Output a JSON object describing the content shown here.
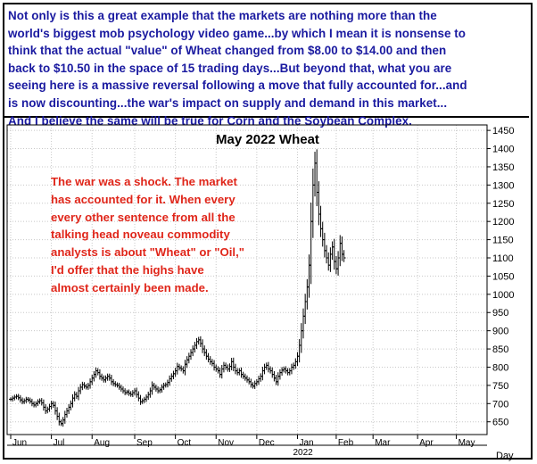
{
  "commentary": {
    "lines": [
      "Not only is this a great example that the markets are nothing more than the",
      "world's biggest mob psychology video game...by which I mean it is nonsense to",
      "think that the actual \"value\" of Wheat changed from $8.00 to $14.00 and then",
      "back to $10.50 in the space of 15 trading days...But beyond that, what you are",
      "seeing here is a massive reversal following a move that fully accounted for...and",
      "is now discounting...the war's impact on supply and demand in this market...",
      "And I believe the same will be true for Corn and the Soybean Complex."
    ],
    "color": "#1a1aa0"
  },
  "annotation": {
    "lines": [
      "The war was a shock. The market",
      "has accounted for it. When every",
      "every other sentence from all the",
      "talking head noveau commodity",
      "analysts is about \"Wheat\" or \"Oil,\"",
      "I'd offer that the highs have",
      "almost certainly been made."
    ],
    "color": "#e0261a"
  },
  "chart_data": {
    "type": "ohlc",
    "title": "May 2022 Wheat",
    "xlabel": "Day",
    "year_label": "2022",
    "ylim": [
      615,
      1465
    ],
    "y_ticks": [
      650,
      700,
      750,
      800,
      850,
      900,
      950,
      1000,
      1050,
      1100,
      1150,
      1200,
      1250,
      1300,
      1350,
      1400,
      1450
    ],
    "months": [
      "Jun",
      "Jul",
      "Aug",
      "Sep",
      "Oct",
      "Nov",
      "Dec",
      "Jan",
      "Feb",
      "Mar",
      "Apr",
      "May"
    ],
    "grid": true,
    "bar_color": "#000000",
    "series": [
      {
        "closes": [
          712,
          715,
          718,
          720,
          716,
          710,
          705,
          708,
          712,
          710,
          706,
          700,
          696,
          700,
          705,
          708,
          702,
          690,
          680,
          685,
          692,
          700,
          695,
          680,
          665,
          650,
          645,
          655,
          670,
          680,
          690,
          700,
          715,
          725,
          720,
          735,
          745,
          752,
          748,
          745,
          750,
          760,
          770,
          780,
          790,
          785,
          775,
          770,
          765,
          770,
          775,
          770,
          760,
          755,
          752,
          750,
          745,
          740,
          735,
          730,
          732,
          728,
          725,
          730,
          735,
          725,
          715,
          705,
          708,
          712,
          718,
          725,
          735,
          750,
          745,
          740,
          735,
          738,
          745,
          750,
          752,
          758,
          768,
          775,
          782,
          790,
          802,
          798,
          795,
          790,
          808,
          820,
          830,
          840,
          850,
          860,
          870,
          875,
          865,
          850,
          840,
          830,
          822,
          815,
          810,
          800,
          795,
          790,
          780,
          795,
          805,
          800,
          795,
          802,
          815,
          800,
          790,
          785,
          790,
          780,
          775,
          770,
          765,
          760,
          752,
          748,
          755,
          760,
          768,
          775,
          790,
          800,
          805,
          795,
          790,
          780,
          770,
          760,
          775,
          785,
          792,
          795,
          790,
          785,
          790,
          800,
          805,
          815,
          830,
          860,
          900,
          940,
          980,
          1020,
          1080,
          1200,
          1300,
          1360,
          1280,
          1220,
          1180,
          1150,
          1120,
          1100,
          1080,
          1110,
          1130,
          1090,
          1070,
          1100,
          1140,
          1110,
          1100
        ]
      }
    ]
  }
}
